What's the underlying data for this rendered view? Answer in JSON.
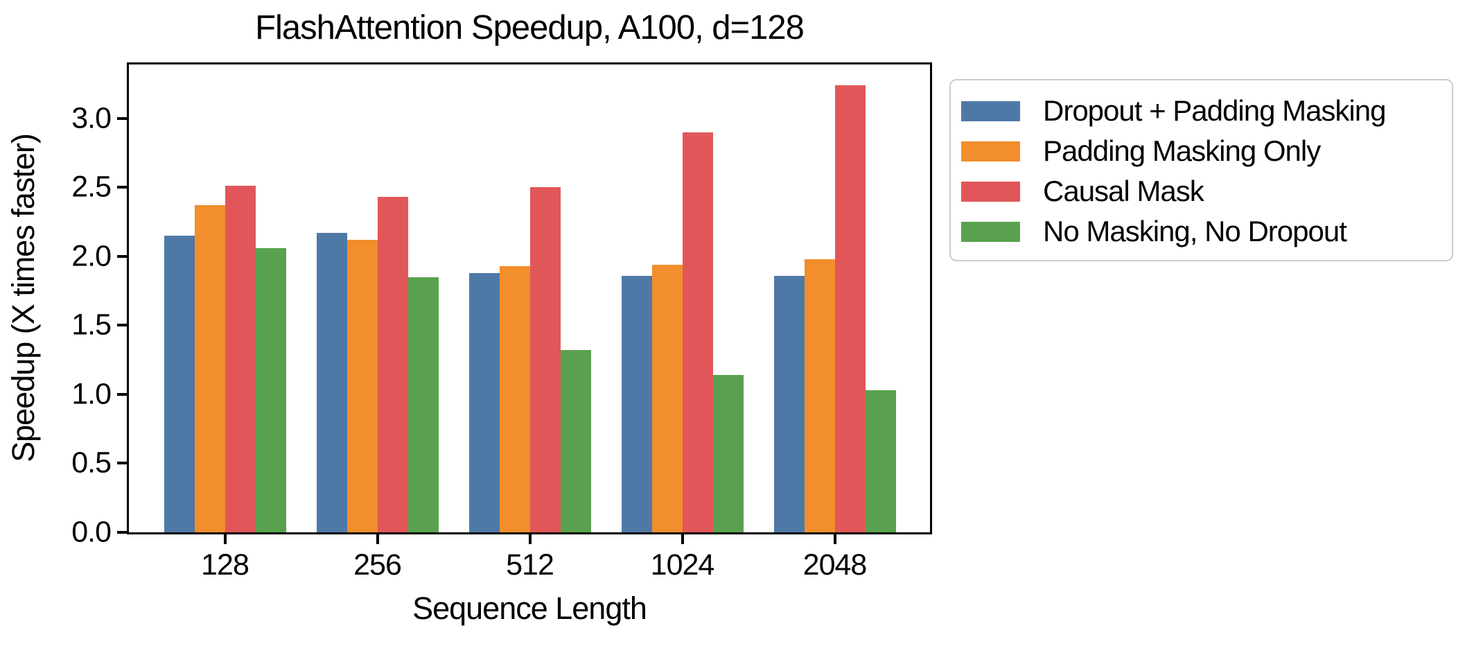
{
  "figure": {
    "title": "FlashAttention Speedup, A100, d=128"
  },
  "chart_data": {
    "type": "bar",
    "title": "FlashAttention Speedup, A100, d=128",
    "xlabel": "Sequence Length",
    "ylabel": "Speedup (X times faster)",
    "categories": [
      "128",
      "256",
      "512",
      "1024",
      "2048"
    ],
    "series": [
      {
        "name": "Dropout + Padding Masking",
        "color": "#4E79A7",
        "values": [
          2.15,
          2.17,
          1.88,
          1.86,
          1.86
        ]
      },
      {
        "name": "Padding Masking Only",
        "color": "#F28E2B",
        "values": [
          2.37,
          2.12,
          1.93,
          1.94,
          1.98
        ]
      },
      {
        "name": "Causal Mask",
        "color": "#E15759",
        "values": [
          2.51,
          2.43,
          2.5,
          2.9,
          3.24
        ]
      },
      {
        "name": "No Masking, No Dropout",
        "color": "#59A14F",
        "values": [
          2.06,
          1.85,
          1.32,
          1.14,
          1.03
        ]
      }
    ],
    "ylim": [
      0,
      3.39
    ],
    "yticks": [
      0.0,
      0.5,
      1.0,
      1.5,
      2.0,
      2.5,
      3.0
    ],
    "ytick_labels": [
      "0.0",
      "0.5",
      "1.0",
      "1.5",
      "2.0",
      "2.5",
      "3.0"
    ],
    "grid": false,
    "legend_position": "outside-upper-right"
  },
  "colors": {
    "axis": "#000000",
    "text": "#000000",
    "background": "#ffffff",
    "legend_border": "#cccccc"
  }
}
